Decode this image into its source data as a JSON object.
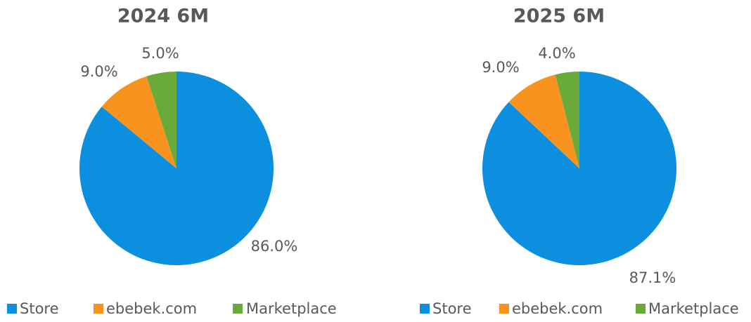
{
  "chart_data": [
    {
      "type": "pie",
      "title": "2024 6M",
      "categories": [
        "Store",
        "ebebek.com",
        "Marketplace"
      ],
      "values": [
        86.0,
        9.0,
        5.0
      ],
      "value_labels": [
        "86.0%",
        "9.0%",
        "5.0%"
      ],
      "colors": [
        "#0d8fe0",
        "#f7931e",
        "#6aaa3a"
      ],
      "legend": "bottom"
    },
    {
      "type": "pie",
      "title": "2025 6M",
      "categories": [
        "Store",
        "ebebek.com",
        "Marketplace"
      ],
      "values": [
        87.1,
        9.0,
        4.0
      ],
      "value_labels": [
        "87.1%",
        "9.0%",
        "4.0%"
      ],
      "colors": [
        "#0d8fe0",
        "#f7931e",
        "#6aaa3a"
      ],
      "legend": "bottom"
    }
  ]
}
